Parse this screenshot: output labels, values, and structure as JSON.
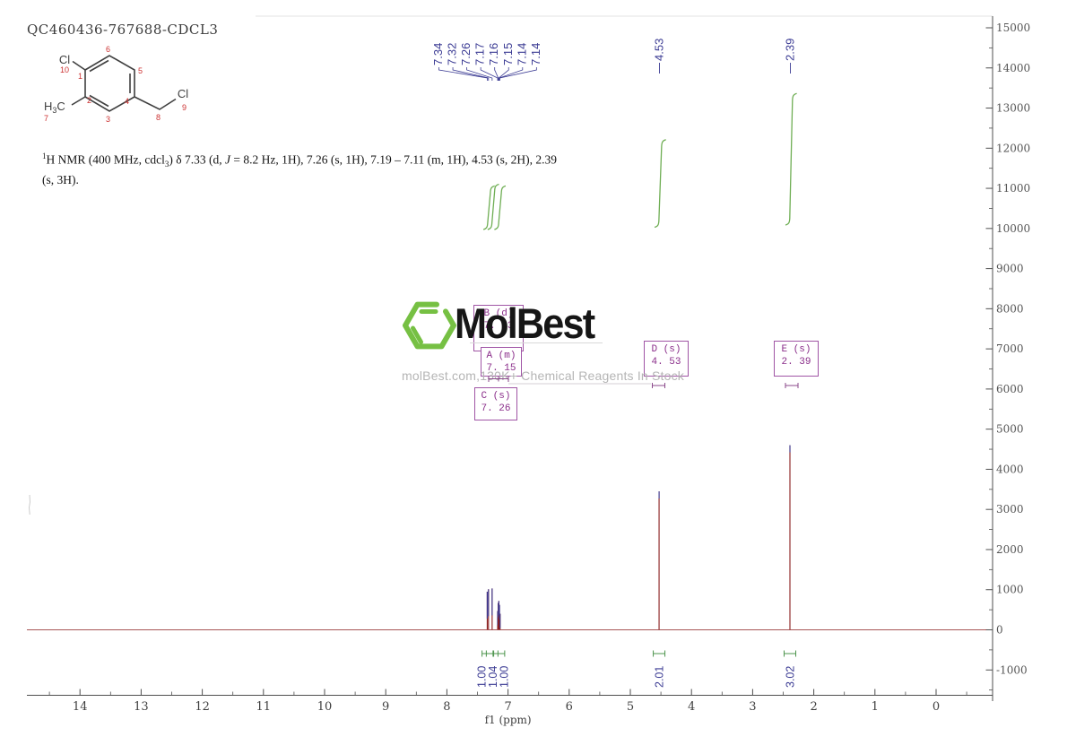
{
  "header": {
    "title": "QC460436-767688-CDCL3"
  },
  "molecule": {
    "substituents": {
      "cl_top": "Cl",
      "methyl_h": "H",
      "methyl_sub": "3",
      "methyl_c": "C",
      "cl_right": "Cl"
    },
    "atom_numbers": {
      "c1": "1",
      "c2": "2",
      "c3": "3",
      "c4": "4",
      "c5": "5",
      "c6": "6",
      "methyl": "7",
      "ch2": "8",
      "cl_right": "9",
      "cl_top": "10"
    }
  },
  "nmr_text": {
    "sup": "1",
    "part1": "H NMR (400 MHz, cdcl",
    "sub": "3",
    "part2": ") δ 7.33 (d, ",
    "j_italic": "J",
    "part3": " = 8.2 Hz, 1H), 7.26 (s, 1H), 7.19 – 7.11 (m, 1H), 4.53 (s, 2H), 2.39",
    "part4": "(s, 3H)."
  },
  "watermark": {
    "brand": "MolBest",
    "tagline": "molBest.com,130K+ Chemical Reagents In Stock"
  },
  "annotation_boxes": [
    {
      "label": "B (d)",
      "value": "7. 33"
    },
    {
      "label": "A (m)",
      "value": "7. 15"
    },
    {
      "label": "C (s)",
      "value": "7. 26"
    },
    {
      "label": "D (s)",
      "value": "4. 53"
    },
    {
      "label": "E (s)",
      "value": "2. 39"
    }
  ],
  "chart_data": {
    "type": "line",
    "title": "1H NMR (400 MHz, cdcl3)",
    "xlabel": "f1 (ppm)",
    "x_axis_range": [
      14.9,
      -0.9
    ],
    "y_axis_range": [
      -1800,
      15300
    ],
    "x_ticks": [
      14,
      13,
      12,
      11,
      10,
      9,
      8,
      7,
      6,
      5,
      4,
      3,
      2,
      1,
      0
    ],
    "y_ticks": [
      15000,
      14000,
      13000,
      12000,
      11000,
      10000,
      9000,
      8000,
      7000,
      6000,
      5000,
      4000,
      3000,
      2000,
      1000,
      0,
      -1000
    ],
    "baseline": 0,
    "peaks": [
      {
        "ppm": 7.34,
        "intensity": 950
      },
      {
        "ppm": 7.32,
        "intensity": 1010
      },
      {
        "ppm": 7.26,
        "intensity": 1030
      },
      {
        "ppm": 7.17,
        "intensity": 470
      },
      {
        "ppm": 7.16,
        "intensity": 670
      },
      {
        "ppm": 7.15,
        "intensity": 720
      },
      {
        "ppm": 7.14,
        "intensity": 620
      },
      {
        "ppm": 7.13,
        "intensity": 400
      },
      {
        "ppm": 4.53,
        "intensity": 3450
      },
      {
        "ppm": 2.39,
        "intensity": 4600
      }
    ],
    "peak_labels_fan": [
      {
        "text": "7.34",
        "ppm": 7.34
      },
      {
        "text": "7.32",
        "ppm": 7.32
      },
      {
        "text": "7.26",
        "ppm": 7.26
      },
      {
        "text": "7.17",
        "ppm": 7.17
      },
      {
        "text": "7.16",
        "ppm": 7.16
      },
      {
        "text": "7.15",
        "ppm": 7.15
      },
      {
        "text": "7.14",
        "ppm": 7.145
      },
      {
        "text": "7.14",
        "ppm": 7.135
      }
    ],
    "peak_labels_dash": [
      {
        "text": "4.53",
        "ppm": 4.53
      },
      {
        "text": "2.39",
        "ppm": 2.39
      }
    ],
    "integrals": [
      {
        "label": "1.00",
        "ppm": 7.33,
        "hydrogens": 1.0
      },
      {
        "label": "1.04",
        "ppm": 7.26,
        "hydrogens": 1.04
      },
      {
        "label": "1.00",
        "ppm": 7.15,
        "hydrogens": 1.0
      },
      {
        "label": "2.01",
        "ppm": 4.53,
        "hydrogens": 2.01
      },
      {
        "label": "3.02",
        "ppm": 2.39,
        "hydrogens": 3.02
      }
    ]
  }
}
